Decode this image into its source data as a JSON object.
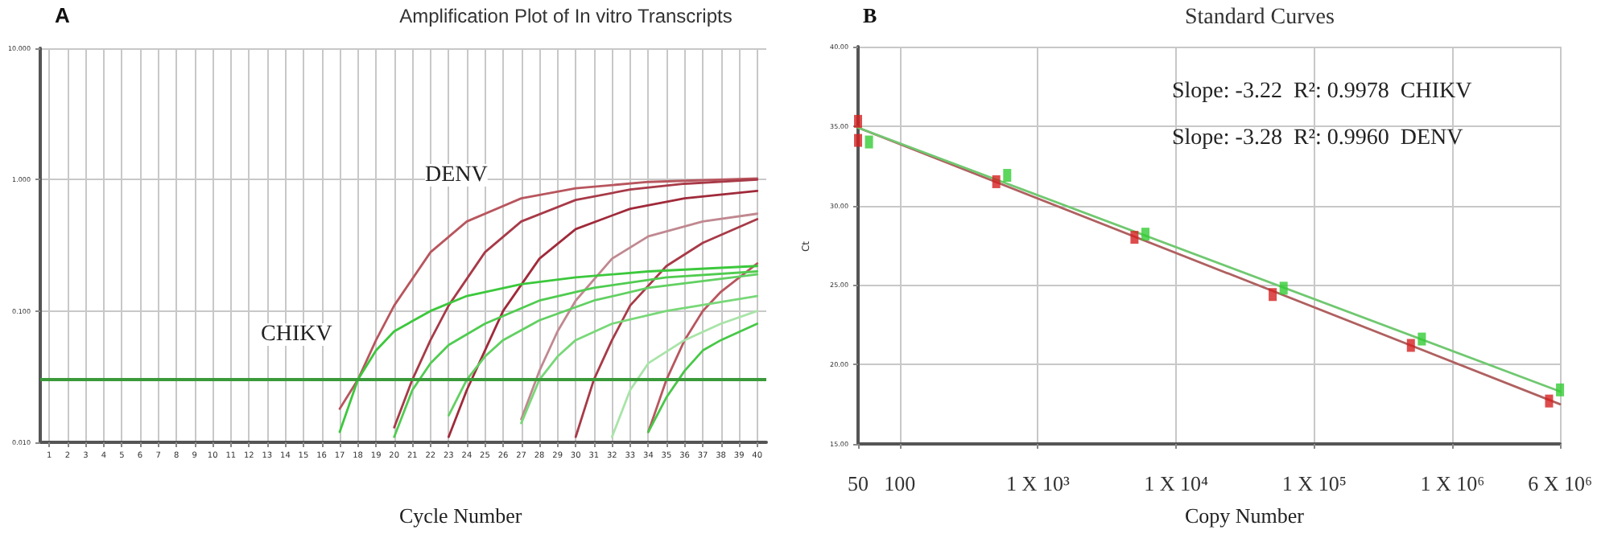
{
  "chart_data": [
    {
      "type": "line",
      "title": "Amplification Plot of In vitro Transcripts",
      "xlabel": "Cycle Number",
      "annotations": [
        "A",
        "DENV",
        "CHIKV"
      ],
      "xlim": [
        0.5,
        40.5
      ],
      "xticks": [
        1,
        2,
        3,
        4,
        5,
        6,
        7,
        8,
        9,
        10,
        11,
        12,
        13,
        14,
        15,
        16,
        17,
        18,
        19,
        20,
        21,
        22,
        23,
        24,
        25,
        26,
        27,
        28,
        29,
        30,
        31,
        32,
        33,
        34,
        35,
        36,
        37,
        38,
        39,
        40
      ],
      "ylim": [
        0.01,
        10
      ],
      "yticks": [
        {
          "value": 0.01,
          "label": "0.010"
        },
        {
          "value": 0.1,
          "label": "0.100"
        },
        {
          "value": 1,
          "label": "1.000"
        },
        {
          "value": 10,
          "label": "10.000"
        }
      ],
      "log": "y",
      "grid": true,
      "marker": "none",
      "line_style": "solid",
      "ref_lines": [
        {
          "axis": "y",
          "value": 0.03,
          "color": "#3a9a3a"
        }
      ],
      "series": [
        {
          "color": "#b8565e",
          "x": [
            17,
            18,
            19,
            20,
            22,
            24,
            27,
            30,
            34,
            40
          ],
          "values": [
            0.018,
            0.03,
            0.06,
            0.11,
            0.28,
            0.48,
            0.72,
            0.86,
            0.96,
            1.02
          ]
        },
        {
          "color": "#a83a48",
          "x": [
            20,
            21,
            22,
            23,
            25,
            27,
            30,
            33,
            36,
            40
          ],
          "values": [
            0.013,
            0.03,
            0.06,
            0.11,
            0.28,
            0.48,
            0.7,
            0.84,
            0.93,
            1.0
          ]
        },
        {
          "color": "#a02a3a",
          "x": [
            23,
            24,
            25,
            26,
            28,
            30,
            33,
            36,
            40
          ],
          "values": [
            0.011,
            0.025,
            0.05,
            0.1,
            0.25,
            0.42,
            0.6,
            0.72,
            0.82
          ]
        },
        {
          "color": "#c08890",
          "x": [
            27,
            28,
            29,
            30,
            32,
            34,
            37,
            40
          ],
          "values": [
            0.015,
            0.035,
            0.07,
            0.12,
            0.25,
            0.37,
            0.48,
            0.55
          ]
        },
        {
          "color": "#a83a48",
          "x": [
            30,
            31,
            32,
            33,
            35,
            37,
            40
          ],
          "values": [
            0.011,
            0.03,
            0.06,
            0.11,
            0.22,
            0.33,
            0.5
          ]
        },
        {
          "color": "#b8565e",
          "x": [
            34,
            35,
            36,
            37,
            38,
            40
          ],
          "values": [
            0.012,
            0.03,
            0.06,
            0.1,
            0.14,
            0.23
          ]
        },
        {
          "color": "#3cc83c",
          "x": [
            17,
            18,
            19,
            20,
            22,
            24,
            27,
            30,
            34,
            40
          ],
          "values": [
            0.012,
            0.03,
            0.05,
            0.07,
            0.1,
            0.13,
            0.16,
            0.18,
            0.2,
            0.22
          ]
        },
        {
          "color": "#50cc50",
          "x": [
            20,
            21,
            22,
            23,
            25,
            28,
            31,
            35,
            40
          ],
          "values": [
            0.011,
            0.025,
            0.04,
            0.055,
            0.08,
            0.12,
            0.15,
            0.18,
            0.2
          ]
        },
        {
          "color": "#62d062",
          "x": [
            23,
            24,
            25,
            26,
            28,
            31,
            34,
            40
          ],
          "values": [
            0.016,
            0.03,
            0.045,
            0.06,
            0.085,
            0.12,
            0.15,
            0.19
          ]
        },
        {
          "color": "#78d878",
          "x": [
            27,
            28,
            29,
            30,
            32,
            35,
            40
          ],
          "values": [
            0.014,
            0.03,
            0.045,
            0.06,
            0.08,
            0.1,
            0.13
          ]
        },
        {
          "color": "#a8e4a8",
          "x": [
            32,
            33,
            34,
            36,
            38,
            40
          ],
          "values": [
            0.011,
            0.025,
            0.04,
            0.06,
            0.08,
            0.1
          ]
        },
        {
          "color": "#48c848",
          "x": [
            34,
            35,
            36,
            37,
            38,
            40
          ],
          "values": [
            0.012,
            0.022,
            0.035,
            0.05,
            0.06,
            0.08
          ]
        }
      ]
    },
    {
      "type": "scatter",
      "title": "Standard Curves",
      "xlabel": "Copy Number",
      "ylabel": "Ct",
      "annotations": [
        "B",
        "Slope: -3.22  R²: 0.9978  CHIKV",
        "Slope: -3.28  R²: 0.9960  DENV"
      ],
      "xlim": [
        50,
        6000000
      ],
      "xticks": [
        50,
        100,
        {
          "value": 1000,
          "label": "1 X 10³"
        },
        {
          "value": 10000,
          "label": "1 X 10⁴"
        },
        {
          "value": 100000,
          "label": "1 X 10⁵"
        },
        {
          "value": 1000000,
          "label": "1 X 10⁶"
        },
        {
          "value": 6000000,
          "label": "6 X 10⁶"
        }
      ],
      "ylim": [
        15,
        40
      ],
      "yticks": [
        {
          "value": 15,
          "label": "15.00"
        },
        {
          "value": 20,
          "label": "20.00"
        },
        {
          "value": 25,
          "label": "25.00"
        },
        {
          "value": 30,
          "label": "30.00"
        },
        {
          "value": 35,
          "label": "35.00"
        },
        {
          "value": 40,
          "label": "40.00"
        }
      ],
      "log": "x",
      "grid": true,
      "marker": "square",
      "series": [
        {
          "type": "line",
          "marker": "none",
          "color": "#b06060",
          "x": [
            50,
            6000000
          ],
          "values": [
            34.9,
            17.5
          ]
        },
        {
          "type": "line",
          "marker": "none",
          "color": "#70c870",
          "x": [
            50,
            6000000
          ],
          "values": [
            34.9,
            18.3
          ]
        },
        {
          "color": "#d42020",
          "x": [
            50,
            50,
            500,
            5000,
            50000,
            500000,
            5000000
          ],
          "values": [
            35.3,
            34.1,
            31.5,
            28.0,
            24.4,
            21.2,
            17.7
          ]
        },
        {
          "color": "#33cc33",
          "x": [
            60,
            600,
            6000,
            60000,
            600000,
            6000000
          ],
          "values": [
            34.0,
            31.9,
            28.2,
            24.8,
            21.6,
            18.4
          ]
        }
      ]
    }
  ]
}
